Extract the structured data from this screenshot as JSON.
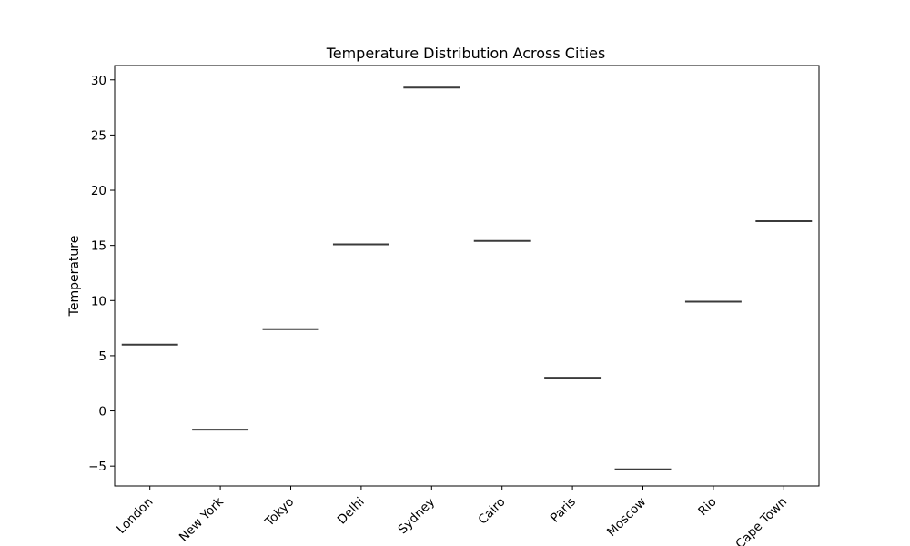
{
  "chart_data": {
    "type": "box",
    "title": "Temperature Distribution Across Cities",
    "xlabel": "",
    "ylabel": "Temperature",
    "ylim": [
      -6.8,
      31.3
    ],
    "yticks": [
      -5,
      0,
      5,
      10,
      15,
      20,
      25,
      30
    ],
    "ytick_labels": [
      "−5",
      "0",
      "5",
      "10",
      "15",
      "20",
      "25",
      "30"
    ],
    "categories": [
      "London",
      "New York",
      "Tokyo",
      "Delhi",
      "Sydney",
      "Cairo",
      "Paris",
      "Moscow",
      "Rio",
      "Cape Town"
    ],
    "values": [
      6.0,
      -1.7,
      7.4,
      15.1,
      29.3,
      15.4,
      3.0,
      -5.3,
      9.9,
      17.2
    ],
    "grid": false,
    "box_color": "#3b3b3b"
  }
}
